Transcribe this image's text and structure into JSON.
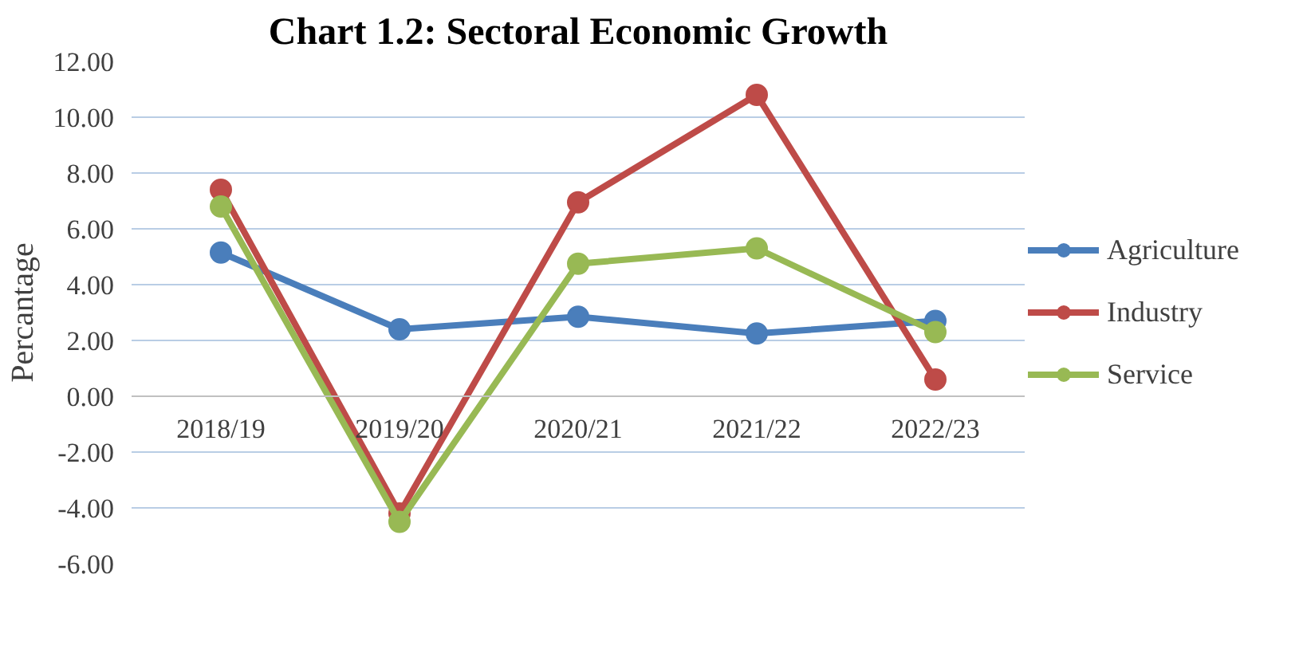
{
  "chart_data": {
    "type": "line",
    "title": "Chart 1.2: Sectoral Economic Growth",
    "ylabel": "Percantage",
    "categories": [
      "2018/19",
      "2019/20",
      "2020/21",
      "2021/22",
      "2022/23"
    ],
    "series": [
      {
        "name": "Agriculture",
        "color": "#4a7ebb",
        "values": [
          5.15,
          2.4,
          2.85,
          2.25,
          2.7
        ]
      },
      {
        "name": "Industry",
        "color": "#be4b48",
        "values": [
          7.4,
          -4.2,
          6.95,
          10.8,
          0.6
        ]
      },
      {
        "name": "Service",
        "color": "#98b954",
        "values": [
          6.8,
          -4.5,
          4.75,
          5.3,
          2.3
        ]
      }
    ],
    "ylim": [
      -6,
      12
    ],
    "yticks": [
      {
        "value": -6,
        "label": "-6.00"
      },
      {
        "value": -4,
        "label": "-4.00"
      },
      {
        "value": -2,
        "label": "-2.00"
      },
      {
        "value": 0,
        "label": "0.00"
      },
      {
        "value": 2,
        "label": "2.00"
      },
      {
        "value": 4,
        "label": "4.00"
      },
      {
        "value": 6,
        "label": "6.00"
      },
      {
        "value": 8,
        "label": "8.00"
      },
      {
        "value": 10,
        "label": "10.00"
      },
      {
        "value": 12,
        "label": "12.00"
      }
    ],
    "grid": "y",
    "legend": "right",
    "marker": "circle",
    "line_style": "solid"
  }
}
